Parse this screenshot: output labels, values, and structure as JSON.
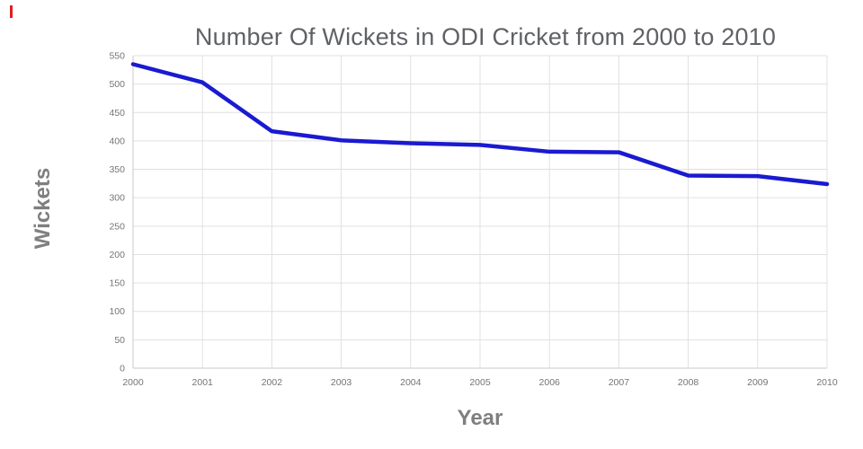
{
  "chart_data": {
    "type": "line",
    "title": "Number Of Wickets in ODI Cricket from 2000 to 2010",
    "xlabel": "Year",
    "ylabel": "Wickets",
    "x": [
      2000,
      2001,
      2002,
      2003,
      2004,
      2005,
      2006,
      2007,
      2008,
      2009,
      2010
    ],
    "values": [
      535,
      503,
      417,
      401,
      396,
      393,
      381,
      380,
      339,
      338,
      324
    ],
    "ylim": [
      0,
      550
    ],
    "ytick_step": 50,
    "grid": true,
    "legend": "none",
    "line_color": "#1a1ad1",
    "grid_color": "#e0e0e0",
    "axis_color": "#c8c8c8",
    "tick_color": "#757575",
    "title_color": "#5f6166",
    "axis_label_color": "#7f7f7f"
  }
}
